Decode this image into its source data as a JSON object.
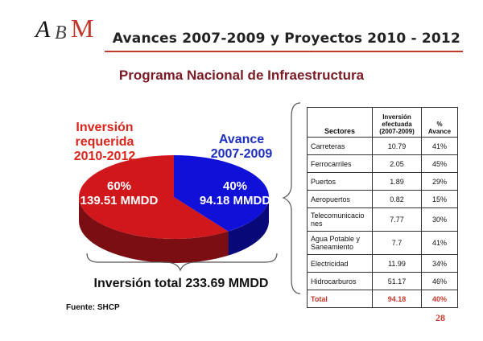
{
  "header": {
    "title": "Avances 2007-2009 y Proyectos 2010 - 2012",
    "logo_text": "ABM"
  },
  "subtitle": "Programa Nacional de Infraestructura",
  "pie": {
    "req_label_lines": [
      "Inversión",
      "requerida",
      "2010-2012"
    ],
    "av_label_lines": [
      "Avance",
      "2007-2009"
    ],
    "total_text": "Inversión total 233.69 MMDD"
  },
  "table": {
    "headers": {
      "sector": "Sectores",
      "inversion_lines": [
        "Inversión",
        "efectuada",
        "(2007-2009)"
      ],
      "avance_lines": [
        "%",
        "Avance"
      ]
    },
    "rows": [
      {
        "sector_lines": [
          "Carreteras"
        ],
        "inversion": "10.79",
        "avance": "41%"
      },
      {
        "sector_lines": [
          "Ferrocarriles"
        ],
        "inversion": "2.05",
        "avance": "45%"
      },
      {
        "sector_lines": [
          "Puertos"
        ],
        "inversion": "1.89",
        "avance": "29%"
      },
      {
        "sector_lines": [
          "Aeropuertos"
        ],
        "inversion": "0.82",
        "avance": "15%"
      },
      {
        "sector_lines": [
          "Telecomunicacio",
          "nes"
        ],
        "inversion": "7.77",
        "avance": "30%"
      },
      {
        "sector_lines": [
          "Agua Potable y",
          "Saneamiento"
        ],
        "inversion": "7.7",
        "avance": "41%"
      },
      {
        "sector_lines": [
          "Electricidad"
        ],
        "inversion": "11.99",
        "avance": "34%"
      },
      {
        "sector_lines": [
          "Hidrocarburos"
        ],
        "inversion": "51.17",
        "avance": "46%"
      }
    ],
    "total": {
      "sector": "Total",
      "inversion": "94.18",
      "avance": "40%"
    }
  },
  "source": "Fuente: SHCP",
  "page_number": "28",
  "colors": {
    "red": "#d0171c",
    "red_dark": "#7a0e12",
    "blue": "#1010d8",
    "blue_dark": "#080878",
    "accent": "#c0392b"
  },
  "chart_data": {
    "type": "pie",
    "title": "",
    "slices": [
      {
        "label": "139.51 MMDD",
        "percent_label": "60%",
        "value": 139.51,
        "percent": 60
      },
      {
        "label": "94.18 MMDD",
        "percent_label": "40%",
        "value": 94.18,
        "percent": 40
      }
    ],
    "total": 233.69
  }
}
